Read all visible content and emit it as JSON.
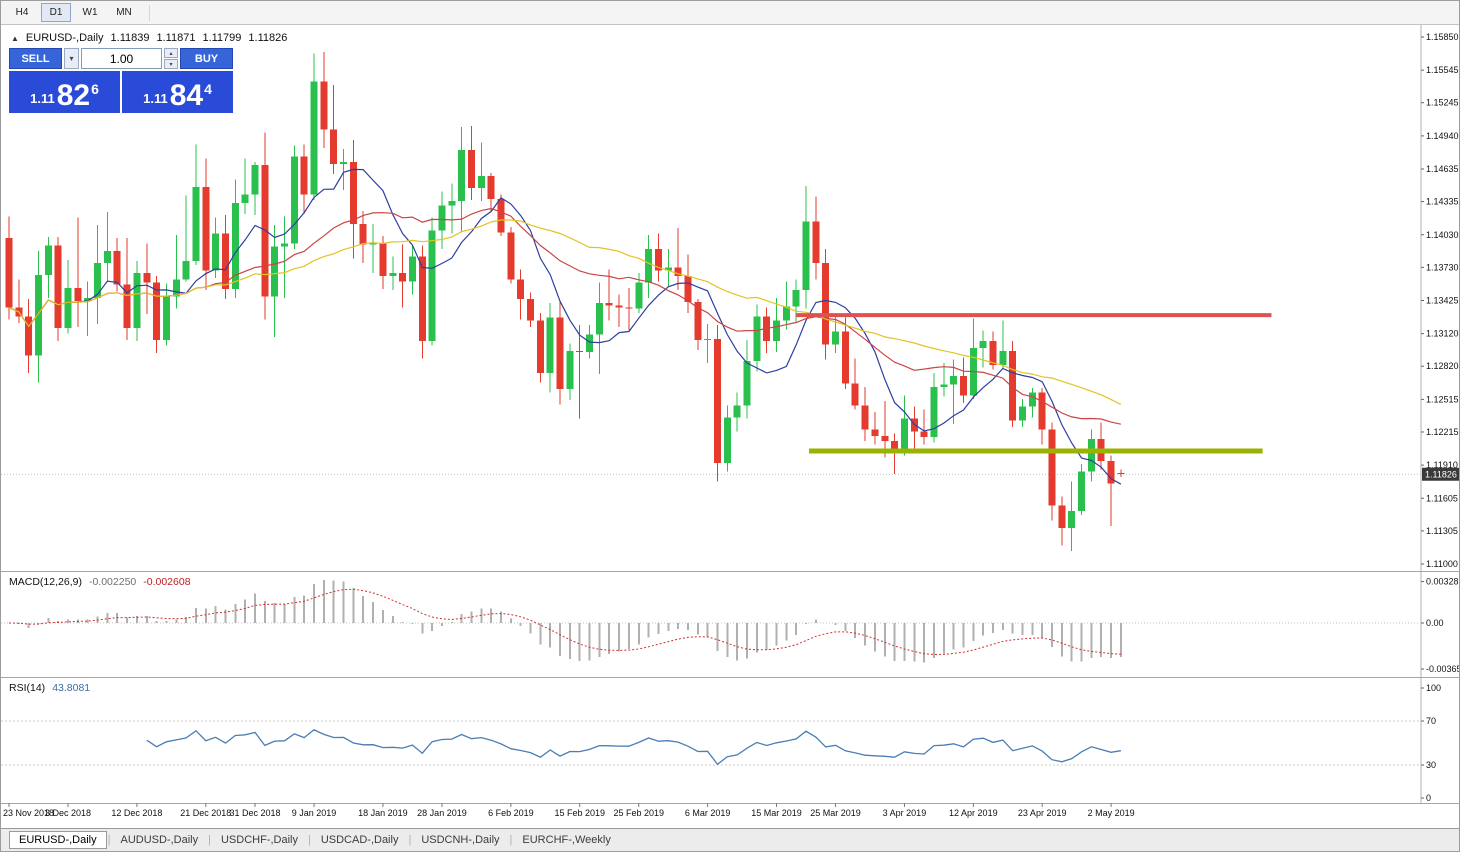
{
  "icons": {
    "chevron_down": "▾",
    "chevron_up": "▴",
    "symbol_arrow": "▲"
  },
  "toolbar": {
    "timeframes": [
      "H4",
      "D1",
      "W1",
      "MN"
    ],
    "active": "D1"
  },
  "chart_header": {
    "symbol": "EURUSD-,Daily",
    "open": "1.11839",
    "high": "1.11871",
    "low": "1.11799",
    "close": "1.11826"
  },
  "trade_panel": {
    "sell_label": "SELL",
    "buy_label": "BUY",
    "volume": "1.00",
    "sell_price": {
      "small": "1.11",
      "big": "82",
      "sup": "6"
    },
    "buy_price": {
      "small": "1.11",
      "big": "84",
      "sup": "4"
    }
  },
  "colors": {
    "panel_blue": "#2a4bd7",
    "button_blue": "#3565d8",
    "candle_up": "#29c04e",
    "candle_down": "#e53a2e",
    "macd_hist": "#b0b0b0",
    "macd_signal": "#d22f2f",
    "rsi_line": "#4a7eb5",
    "price_badge_bg": "#3a3a3a",
    "axis_text": "#111111",
    "separator": "#a6a6a6"
  },
  "chart_data": {
    "type": "candlestick",
    "symbol": "EURUSD",
    "timeframe": "Daily",
    "current_price": 1.11826,
    "current_price_label": "1.11826",
    "price_axis": [
      "1.15850",
      "1.15545",
      "1.15245",
      "1.14940",
      "1.14635",
      "1.14335",
      "1.14030",
      "1.13730",
      "1.13425",
      "1.13120",
      "1.12820",
      "1.12515",
      "1.12215",
      "1.11910",
      "1.11605",
      "1.11305",
      "1.11000"
    ],
    "candles": [
      [
        1.14,
        1.142,
        1.1325,
        1.1336
      ],
      [
        1.1336,
        1.1362,
        1.1322,
        1.1328
      ],
      [
        1.1328,
        1.1344,
        1.1276,
        1.1292
      ],
      [
        1.1292,
        1.1388,
        1.1267,
        1.1366
      ],
      [
        1.1366,
        1.1401,
        1.1345,
        1.1393
      ],
      [
        1.1393,
        1.1401,
        1.1305,
        1.1317
      ],
      [
        1.1317,
        1.138,
        1.1312,
        1.1354
      ],
      [
        1.1354,
        1.1419,
        1.1318,
        1.1342
      ],
      [
        1.1342,
        1.136,
        1.131,
        1.1345
      ],
      [
        1.1345,
        1.1412,
        1.1321,
        1.1377
      ],
      [
        1.1377,
        1.1424,
        1.136,
        1.1388
      ],
      [
        1.1388,
        1.14,
        1.1351,
        1.1357
      ],
      [
        1.1357,
        1.14,
        1.1306,
        1.1317
      ],
      [
        1.1317,
        1.1379,
        1.1305,
        1.1368
      ],
      [
        1.1368,
        1.1395,
        1.133,
        1.1359
      ],
      [
        1.1359,
        1.1365,
        1.1294,
        1.1306
      ],
      [
        1.1306,
        1.1358,
        1.1301,
        1.1346
      ],
      [
        1.1346,
        1.1403,
        1.1335,
        1.1362
      ],
      [
        1.1362,
        1.1439,
        1.136,
        1.1379
      ],
      [
        1.1379,
        1.1486,
        1.1375,
        1.1447
      ],
      [
        1.1447,
        1.1473,
        1.1352,
        1.137
      ],
      [
        1.137,
        1.1419,
        1.1363,
        1.1404
      ],
      [
        1.1404,
        1.1421,
        1.1344,
        1.1353
      ],
      [
        1.1353,
        1.1454,
        1.1345,
        1.1432
      ],
      [
        1.1432,
        1.1473,
        1.1422,
        1.144
      ],
      [
        1.144,
        1.147,
        1.1421,
        1.1467
      ],
      [
        1.1467,
        1.1497,
        1.1325,
        1.1346
      ],
      [
        1.1346,
        1.1412,
        1.1309,
        1.1392
      ],
      [
        1.1392,
        1.142,
        1.1345,
        1.1395
      ],
      [
        1.1395,
        1.1485,
        1.139,
        1.1475
      ],
      [
        1.1475,
        1.1486,
        1.1422,
        1.144
      ],
      [
        1.144,
        1.157,
        1.1435,
        1.1544
      ],
      [
        1.1544,
        1.1571,
        1.1483,
        1.15
      ],
      [
        1.15,
        1.1541,
        1.1459,
        1.1468
      ],
      [
        1.1468,
        1.1482,
        1.1444,
        1.147
      ],
      [
        1.147,
        1.149,
        1.1381,
        1.1413
      ],
      [
        1.1413,
        1.1425,
        1.1377,
        1.1394
      ],
      [
        1.1394,
        1.1413,
        1.1368,
        1.1395
      ],
      [
        1.1395,
        1.1402,
        1.1353,
        1.1365
      ],
      [
        1.1365,
        1.1383,
        1.1352,
        1.1368
      ],
      [
        1.1368,
        1.1394,
        1.1336,
        1.136
      ],
      [
        1.136,
        1.1394,
        1.1348,
        1.1383
      ],
      [
        1.1383,
        1.1393,
        1.1289,
        1.1305
      ],
      [
        1.1305,
        1.1419,
        1.1301,
        1.1407
      ],
      [
        1.1407,
        1.1443,
        1.139,
        1.143
      ],
      [
        1.143,
        1.145,
        1.1404,
        1.1434
      ],
      [
        1.1434,
        1.1502,
        1.1405,
        1.1481
      ],
      [
        1.1481,
        1.1503,
        1.1435,
        1.1446
      ],
      [
        1.1446,
        1.1488,
        1.1434,
        1.1457
      ],
      [
        1.1457,
        1.146,
        1.1425,
        1.1436
      ],
      [
        1.1436,
        1.144,
        1.1402,
        1.1405
      ],
      [
        1.1405,
        1.141,
        1.1358,
        1.1362
      ],
      [
        1.1362,
        1.1371,
        1.1325,
        1.1344
      ],
      [
        1.1344,
        1.135,
        1.1318,
        1.1324
      ],
      [
        1.1324,
        1.1331,
        1.1267,
        1.1276
      ],
      [
        1.1276,
        1.134,
        1.1258,
        1.1327
      ],
      [
        1.1327,
        1.1341,
        1.1247,
        1.1261
      ],
      [
        1.1261,
        1.1303,
        1.1251,
        1.1296
      ],
      [
        1.1296,
        1.132,
        1.1234,
        1.1295
      ],
      [
        1.1295,
        1.132,
        1.1289,
        1.1311
      ],
      [
        1.1311,
        1.1359,
        1.1275,
        1.134
      ],
      [
        1.134,
        1.1371,
        1.1324,
        1.1338
      ],
      [
        1.1338,
        1.1348,
        1.1318,
        1.1336
      ],
      [
        1.1336,
        1.1354,
        1.1315,
        1.1335
      ],
      [
        1.1335,
        1.1368,
        1.1331,
        1.1359
      ],
      [
        1.1359,
        1.1403,
        1.1345,
        1.139
      ],
      [
        1.139,
        1.1404,
        1.136,
        1.137
      ],
      [
        1.137,
        1.139,
        1.1355,
        1.1373
      ],
      [
        1.1373,
        1.1409,
        1.1352,
        1.1365
      ],
      [
        1.1365,
        1.1385,
        1.1331,
        1.1341
      ],
      [
        1.1341,
        1.1344,
        1.1297,
        1.1306
      ],
      [
        1.1306,
        1.1321,
        1.1285,
        1.1307
      ],
      [
        1.1307,
        1.132,
        1.1176,
        1.1193
      ],
      [
        1.1193,
        1.1246,
        1.1185,
        1.1235
      ],
      [
        1.1235,
        1.1258,
        1.1222,
        1.1246
      ],
      [
        1.1246,
        1.1306,
        1.1234,
        1.1287
      ],
      [
        1.1287,
        1.1339,
        1.1277,
        1.1328
      ],
      [
        1.1328,
        1.1336,
        1.1294,
        1.1305
      ],
      [
        1.1305,
        1.1345,
        1.1295,
        1.1324
      ],
      [
        1.1324,
        1.136,
        1.1316,
        1.1337
      ],
      [
        1.1337,
        1.1362,
        1.1322,
        1.1352
      ],
      [
        1.1352,
        1.1448,
        1.1335,
        1.1415
      ],
      [
        1.1415,
        1.1438,
        1.1362,
        1.1377
      ],
      [
        1.1377,
        1.139,
        1.1288,
        1.1302
      ],
      [
        1.1302,
        1.133,
        1.1294,
        1.1314
      ],
      [
        1.1314,
        1.1327,
        1.1261,
        1.1266
      ],
      [
        1.1266,
        1.1289,
        1.1242,
        1.1246
      ],
      [
        1.1246,
        1.1263,
        1.1213,
        1.1224
      ],
      [
        1.1224,
        1.124,
        1.121,
        1.1218
      ],
      [
        1.1218,
        1.125,
        1.1198,
        1.1213
      ],
      [
        1.1213,
        1.122,
        1.1183,
        1.1205
      ],
      [
        1.1205,
        1.1255,
        1.12,
        1.1234
      ],
      [
        1.1234,
        1.1245,
        1.1206,
        1.1222
      ],
      [
        1.1222,
        1.1242,
        1.121,
        1.1217
      ],
      [
        1.1217,
        1.1276,
        1.1212,
        1.1263
      ],
      [
        1.1263,
        1.1285,
        1.1254,
        1.1265
      ],
      [
        1.1265,
        1.1288,
        1.1229,
        1.1273
      ],
      [
        1.1273,
        1.129,
        1.1248,
        1.1255
      ],
      [
        1.1255,
        1.1326,
        1.1252,
        1.1299
      ],
      [
        1.1299,
        1.1315,
        1.1281,
        1.1305
      ],
      [
        1.1305,
        1.1314,
        1.1279,
        1.1283
      ],
      [
        1.1283,
        1.1324,
        1.128,
        1.1296
      ],
      [
        1.1296,
        1.1305,
        1.1226,
        1.1232
      ],
      [
        1.1232,
        1.1252,
        1.1226,
        1.1245
      ],
      [
        1.1245,
        1.1262,
        1.1235,
        1.1258
      ],
      [
        1.1258,
        1.1262,
        1.121,
        1.1224
      ],
      [
        1.1224,
        1.123,
        1.114,
        1.1154
      ],
      [
        1.1154,
        1.1162,
        1.1117,
        1.1133
      ],
      [
        1.1133,
        1.1176,
        1.1112,
        1.1149
      ],
      [
        1.1149,
        1.1192,
        1.1145,
        1.1185
      ],
      [
        1.1185,
        1.1224,
        1.1176,
        1.1215
      ],
      [
        1.1215,
        1.123,
        1.1187,
        1.1195
      ],
      [
        1.1195,
        1.12,
        1.1135,
        1.1174
      ],
      [
        1.11839,
        1.11871,
        1.11799,
        1.11826
      ]
    ],
    "date_ticks": [
      {
        "bar": 0,
        "label": "23 Nov 2018"
      },
      {
        "bar": 6,
        "label": "3 Dec 2018"
      },
      {
        "bar": 13,
        "label": "12 Dec 2018"
      },
      {
        "bar": 20,
        "label": "21 Dec 2018"
      },
      {
        "bar": 25,
        "label": "31 Dec 2018"
      },
      {
        "bar": 31,
        "label": "9 Jan 2019"
      },
      {
        "bar": 38,
        "label": "18 Jan 2019"
      },
      {
        "bar": 44,
        "label": "28 Jan 2019"
      },
      {
        "bar": 51,
        "label": "6 Feb 2019"
      },
      {
        "bar": 58,
        "label": "15 Feb 2019"
      },
      {
        "bar": 64,
        "label": "25 Feb 2019"
      },
      {
        "bar": 71,
        "label": "6 Mar 2019"
      },
      {
        "bar": 78,
        "label": "15 Mar 2019"
      },
      {
        "bar": 84,
        "label": "25 Mar 2019"
      },
      {
        "bar": 91,
        "label": "3 Apr 2019"
      },
      {
        "bar": 98,
        "label": "12 Apr 2019"
      },
      {
        "bar": 105,
        "label": "23 Apr 2019"
      },
      {
        "bar": 112,
        "label": "2 May 2019"
      }
    ],
    "moving_averages": [
      {
        "name": "ma-fast",
        "period": 8,
        "color": "#2e3f9f"
      },
      {
        "name": "ma-mid",
        "period": 21,
        "color": "#cc4444"
      },
      {
        "name": "ma-slow",
        "period": 34,
        "color": "#e3c320"
      }
    ],
    "hlines": [
      {
        "name": "resistance-line",
        "price": 1.1329,
        "bar_start": 80,
        "bar_end": 128.3,
        "color": "#e05050",
        "width": 4
      },
      {
        "name": "support-line",
        "price": 1.1204,
        "bar_start": 81.3,
        "bar_end": 127.4,
        "color": "#99b300",
        "width": 5
      }
    ],
    "macd": {
      "label": "MACD(12,26,9)",
      "value_main": "-0.002250",
      "value_signal": "-0.002608",
      "fast": 12,
      "slow": 26,
      "signal": 9,
      "axis": [
        {
          "value": 0.003287,
          "label": "0.003287"
        },
        {
          "value": 0,
          "label": "0.00"
        },
        {
          "value": -0.00365,
          "label": "-0.00365"
        }
      ]
    },
    "rsi": {
      "label": "RSI(14)",
      "value": "43.8081",
      "period": 14,
      "levels": [
        70,
        30
      ],
      "axis": [
        {
          "value": 100,
          "label": "100"
        },
        {
          "value": 70,
          "label": "70"
        },
        {
          "value": 30,
          "label": "30"
        },
        {
          "value": 0,
          "label": "0"
        }
      ]
    }
  },
  "bottom_tabs": {
    "items": [
      {
        "label": "EURUSD-,Daily",
        "active": true
      },
      {
        "label": "AUDUSD-,Daily",
        "active": false
      },
      {
        "label": "USDCHF-,Daily",
        "active": false
      },
      {
        "label": "USDCAD-,Daily",
        "active": false
      },
      {
        "label": "USDCNH-,Daily",
        "active": false
      },
      {
        "label": "EURCHF-,Weekly",
        "active": false
      }
    ]
  }
}
